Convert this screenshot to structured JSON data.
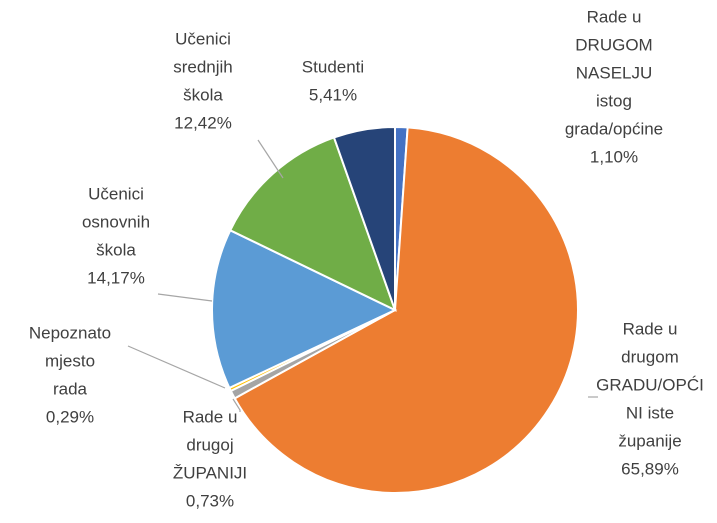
{
  "chart_data": {
    "type": "pie",
    "categories": [
      [
        "Rade u",
        "DRUGOM",
        "NASELJU",
        "istog",
        "grada/općine"
      ],
      [
        "Rade u",
        "drugom",
        "GRADU/OPĆI",
        "NI iste",
        "županije"
      ],
      [
        "Rade u",
        "drugoj",
        "ŽUPANIJI"
      ],
      [
        "Nepoznato",
        "mjesto",
        "rada"
      ],
      [
        "Učenici",
        "osnovnih",
        "škola"
      ],
      [
        "Učenici",
        "srednjih",
        "škola"
      ],
      [
        "Studenti"
      ]
    ],
    "values": [
      1.1,
      65.89,
      0.73,
      0.29,
      14.17,
      12.42,
      5.41
    ],
    "value_labels": [
      "1,10%",
      "65,89%",
      "0,73%",
      "0,29%",
      "14,17%",
      "12,42%",
      "5,41%"
    ],
    "colors": [
      "#4472c4",
      "#ed7d31",
      "#a5a5a5",
      "#ffc000",
      "#5b9bd5",
      "#70ad47",
      "#264478"
    ]
  }
}
